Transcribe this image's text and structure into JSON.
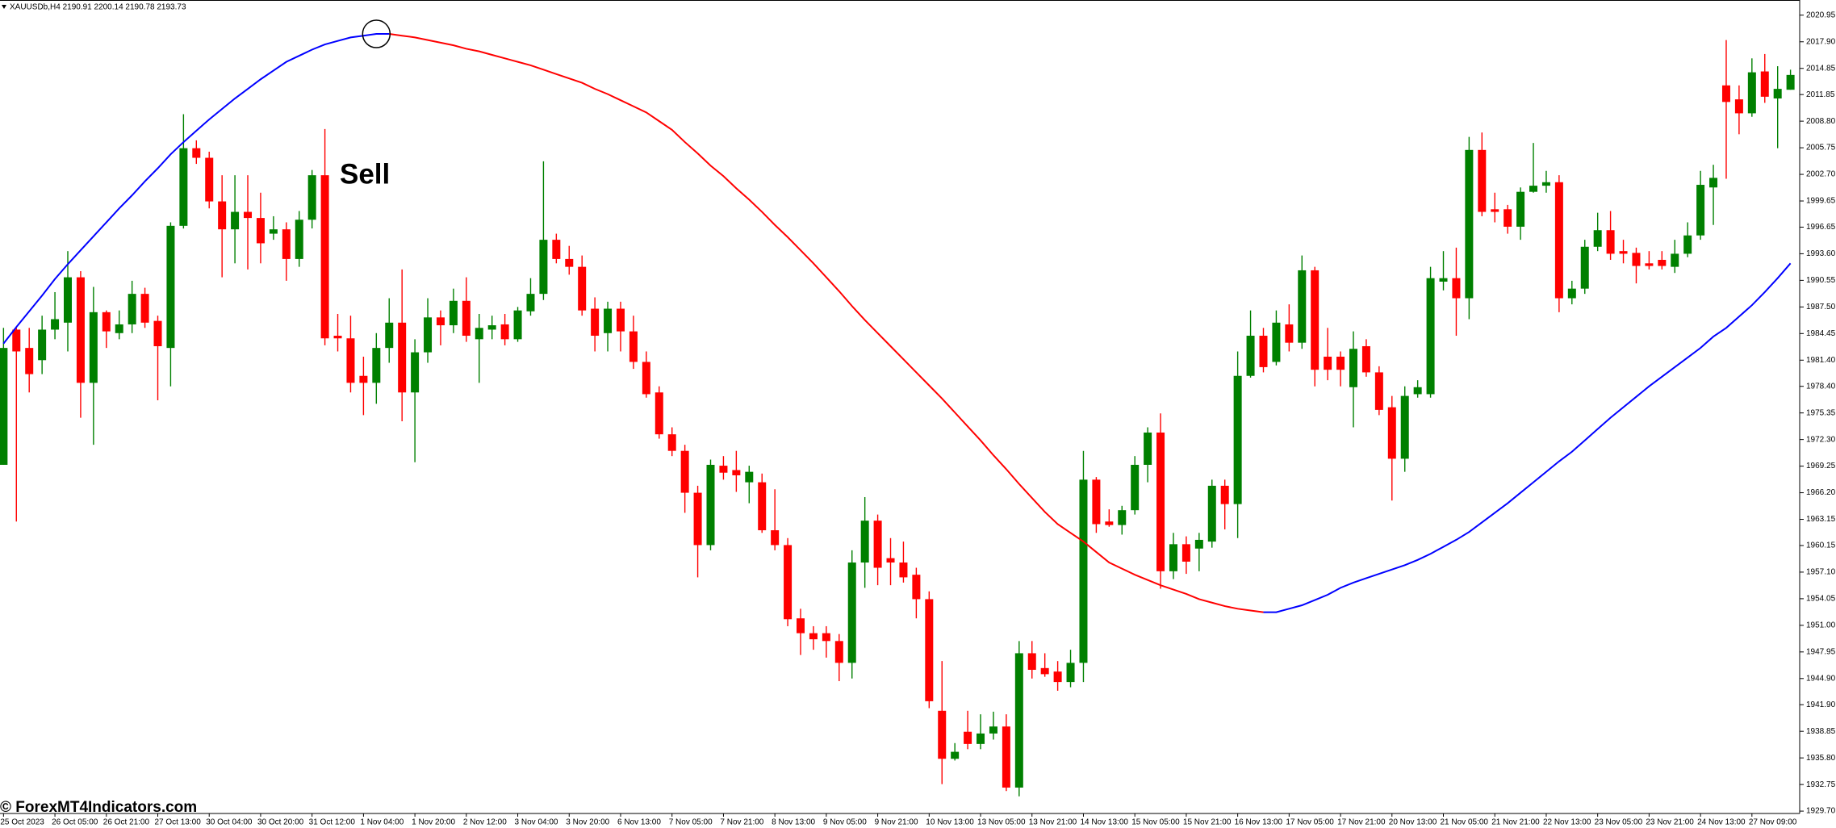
{
  "chart_data": {
    "type": "candlestick",
    "symbol_info": "XAUUSDb,H4 2190.91 2200.14 2190.78 2193.73",
    "annotation": "Sell",
    "watermark": "© ForexMT4Indicators.com",
    "categories": [
      "25 Oct 2023",
      null,
      null,
      null,
      "26 Oct 05:00",
      null,
      null,
      null,
      "26 Oct 21:00",
      null,
      null,
      null,
      "27 Oct 13:00",
      null,
      null,
      null,
      "30 Oct 04:00",
      null,
      null,
      null,
      "30 Oct 20:00",
      null,
      null,
      null,
      "31 Oct 12:00",
      null,
      null,
      null,
      "1 Nov 04:00",
      null,
      null,
      null,
      "1 Nov 20:00",
      null,
      null,
      null,
      "2 Nov 12:00",
      null,
      null,
      null,
      "3 Nov 04:00",
      null,
      null,
      null,
      "3 Nov 20:00",
      null,
      null,
      null,
      "6 Nov 13:00",
      null,
      null,
      null,
      "7 Nov 05:00",
      null,
      null,
      null,
      "7 Nov 21:00",
      null,
      null,
      null,
      "8 Nov 13:00",
      null,
      null,
      null,
      "9 Nov 05:00",
      null,
      null,
      null,
      "9 Nov 21:00",
      null,
      null,
      null,
      "10 Nov 13:00",
      null,
      null,
      null,
      "13 Nov 05:00",
      null,
      null,
      null,
      "13 Nov 21:00",
      null,
      null,
      null,
      "14 Nov 13:00",
      null,
      null,
      null,
      "15 Nov 05:00",
      null,
      null,
      null,
      "15 Nov 21:00",
      null,
      null,
      null,
      "16 Nov 13:00",
      null,
      null,
      null,
      "17 Nov 05:00",
      null,
      null,
      null,
      "17 Nov 21:00",
      null,
      null,
      null,
      "20 Nov 13:00",
      null,
      null,
      null,
      "21 Nov 05:00",
      null,
      null,
      null,
      "21 Nov 21:00",
      null,
      null,
      null,
      "22 Nov 13:00",
      null,
      null,
      null,
      "23 Nov 05:00",
      null,
      null,
      null,
      "23 Nov 21:00",
      null,
      null,
      null,
      "24 Nov 13:00",
      null,
      null,
      null,
      "27 Nov 09:00",
      null,
      null,
      null
    ],
    "open": [
      1969.4,
      1984.9,
      1982.8,
      1981.4,
      1984.9,
      1985.7,
      1990.9,
      1978.8,
      1986.9,
      1984.5,
      1985.5,
      1989.0,
      1985.9,
      1982.8,
      1996.8,
      2005.7,
      2004.6,
      1999.6,
      1996.4,
      1998.4,
      1997.7,
      1995.9,
      1996.4,
      1993.0,
      1997.5,
      2002.6,
      1984.2,
      1983.9,
      1979.6,
      1978.8,
      1982.8,
      1985.7,
      1977.7,
      1982.3,
      1986.3,
      1985.4,
      1988.2,
      1983.8,
      1984.9,
      1985.5,
      1983.8,
      1987.0,
      1989.0,
      1995.2,
      1993.0,
      1992.1,
      1987.3,
      1984.5,
      1987.3,
      1984.7,
      1981.2,
      1977.7,
      1972.9,
      1971.0,
      1966.2,
      1960.2,
      1969.3,
      1968.8,
      1967.4,
      1967.4,
      1961.9,
      1960.2,
      1951.8,
      1950.1,
      1950.1,
      1949.2,
      1946.7,
      1958.2,
      1963.0,
      1958.7,
      1958.2,
      1956.8,
      1954.0,
      1941.2,
      1935.7,
      1938.8,
      1937.4,
      1938.6,
      1939.4,
      1932.4,
      1947.8,
      1946.1,
      1945.7,
      1944.5,
      1946.7,
      1967.7,
      1962.9,
      1962.5,
      1964.2,
      1969.4,
      1973.1,
      1957.2,
      1960.3,
      1959.8,
      1960.6,
      1967.0,
      1964.9,
      1979.6,
      1984.2,
      1981.2,
      1985.5,
      1983.4,
      1991.7,
      1981.8,
      1981.8,
      1978.3,
      1983.0,
      1980.0,
      1976.0,
      1970.1,
      1977.5,
      1977.5,
      1990.4,
      1990.8,
      1988.5,
      2005.5,
      1998.7,
      1998.7,
      1996.7,
      2000.7,
      2001.4,
      2001.8,
      1988.5,
      1989.6,
      1994.4,
      1996.3,
      1993.9,
      1993.7,
      1992.5,
      1992.9,
      1992.1,
      1993.6,
      1995.7,
      2001.2,
      2012.9,
      2011.3,
      2009.7,
      2014.5,
      2011.4,
      2012.4
    ],
    "high": [
      1985.1,
      1985.1,
      1985.1,
      1986.5,
      1989.2,
      1993.9,
      1991.6,
      1989.8,
      1987.1,
      1987.1,
      1990.5,
      1989.7,
      1986.5,
      1997.2,
      2009.6,
      2006.6,
      2005.3,
      2002.6,
      2002.6,
      2002.6,
      2000.6,
      1997.9,
      1997.2,
      1998.5,
      2003.2,
      2007.9,
      1986.7,
      1986.5,
      1981.8,
      1984.5,
      1988.5,
      1991.8,
      1983.8,
      1988.5,
      1987.1,
      1989.6,
      1990.9,
      1986.7,
      1986.5,
      1986.7,
      1987.5,
      1990.8,
      2004.2,
      1995.9,
      1994.5,
      1993.4,
      1988.6,
      1988.1,
      1988.1,
      1986.5,
      1982.4,
      1978.4,
      1973.7,
      1971.7,
      1967.0,
      1970.0,
      1970.4,
      1971.0,
      1969.3,
      1968.4,
      1966.6,
      1961.0,
      1952.9,
      1950.9,
      1950.9,
      1950.0,
      1959.6,
      1965.7,
      1963.7,
      1961.0,
      1960.6,
      1957.6,
      1954.9,
      1946.9,
      1937.5,
      1941.2,
      1940.8,
      1941.1,
      1940.8,
      1949.2,
      1949.2,
      1947.8,
      1946.9,
      1948.2,
      1971.0,
      1968.0,
      1964.3,
      1964.7,
      1970.4,
      1973.7,
      1975.3,
      1961.6,
      1961.2,
      1961.6,
      1967.7,
      1967.7,
      1982.4,
      1987.1,
      1985.1,
      1987.1,
      1987.8,
      1993.4,
      1992.1,
      1985.1,
      1982.4,
      1984.7,
      1983.8,
      1980.7,
      1977.3,
      1978.4,
      1979.1,
      1992.1,
      1993.9,
      1994.3,
      2007.0,
      2007.5,
      2000.6,
      1999.2,
      2001.2,
      2006.3,
      2003.1,
      2002.6,
      1990.5,
      1995.2,
      1998.3,
      1998.5,
      1995.2,
      1994.3,
      1993.9,
      1993.9,
      1995.2,
      1997.2,
      2003.1,
      2003.8,
      2018.1,
      2012.9,
      2016.0,
      2016.5,
      2015.1,
      2014.7
    ],
    "low": [
      1969.4,
      1962.9,
      1977.7,
      1979.8,
      1983.8,
      1982.4,
      1974.8,
      1971.7,
      1982.8,
      1983.8,
      1984.5,
      1985.1,
      1976.8,
      1978.4,
      1996.5,
      2003.9,
      1998.8,
      1990.9,
      1992.5,
      1991.8,
      1992.5,
      1995.2,
      1990.5,
      1992.1,
      1996.5,
      1983.1,
      1982.4,
      1977.7,
      1975.1,
      1976.4,
      1981.1,
      1974.4,
      1969.7,
      1981.1,
      1983.1,
      1984.5,
      1983.5,
      1978.8,
      1983.8,
      1983.1,
      1983.5,
      1986.5,
      1988.3,
      1992.5,
      1991.2,
      1986.5,
      1982.4,
      1982.4,
      1982.4,
      1980.4,
      1977.1,
      1972.4,
      1970.4,
      1963.9,
      1956.5,
      1959.6,
      1967.7,
      1966.3,
      1965.0,
      1961.6,
      1959.6,
      1950.9,
      1947.6,
      1948.2,
      1947.3,
      1944.6,
      1944.9,
      1955.3,
      1955.6,
      1955.6,
      1955.9,
      1951.8,
      1941.5,
      1932.8,
      1935.5,
      1936.8,
      1936.8,
      1937.9,
      1932.0,
      1931.4,
      1944.9,
      1945.1,
      1943.5,
      1943.9,
      1944.5,
      1961.6,
      1962.3,
      1961.4,
      1963.7,
      1967.4,
      1955.2,
      1956.3,
      1956.9,
      1957.2,
      1959.9,
      1962.0,
      1961.0,
      1979.4,
      1980.0,
      1980.8,
      1982.4,
      1982.7,
      1978.4,
      1979.1,
      1978.4,
      1973.7,
      1979.5,
      1975.1,
      1965.3,
      1968.6,
      1977.1,
      1977.1,
      1989.4,
      1984.2,
      1986.1,
      1997.9,
      1997.2,
      1995.9,
      1995.2,
      2000.6,
      2000.6,
      1986.9,
      1987.8,
      1989.0,
      1993.9,
      1992.9,
      1992.5,
      1990.2,
      1991.8,
      1991.8,
      1991.4,
      1993.2,
      1995.2,
      1996.9,
      2002.2,
      2007.3,
      2009.3,
      2010.9,
      2005.7,
      2012.4
    ],
    "close": [
      1982.8,
      1982.4,
      1979.8,
      1984.9,
      1986.1,
      1990.9,
      1978.8,
      1986.9,
      1984.7,
      1985.5,
      1989.0,
      1985.7,
      1983.0,
      1996.8,
      2005.7,
      2004.6,
      1999.6,
      1996.4,
      1998.4,
      1997.7,
      1994.8,
      1996.4,
      1993.0,
      1997.5,
      2002.6,
      1983.9,
      1983.9,
      1978.8,
      1978.8,
      1982.8,
      1985.7,
      1977.7,
      1982.3,
      1986.3,
      1985.4,
      1988.2,
      1984.2,
      1985.1,
      1985.4,
      1983.8,
      1987.1,
      1989.0,
      1995.2,
      1993.0,
      1992.1,
      1987.1,
      1984.2,
      1987.3,
      1984.7,
      1981.2,
      1977.5,
      1972.9,
      1971.0,
      1966.2,
      1960.2,
      1969.4,
      1968.5,
      1968.2,
      1968.6,
      1961.9,
      1960.2,
      1951.7,
      1950.1,
      1949.4,
      1949.2,
      1946.7,
      1958.2,
      1963.0,
      1957.6,
      1958.2,
      1956.5,
      1954.0,
      1942.3,
      1935.7,
      1936.5,
      1937.4,
      1938.6,
      1939.4,
      1932.4,
      1947.8,
      1945.9,
      1945.4,
      1944.5,
      1946.7,
      1967.7,
      1962.6,
      1962.5,
      1964.2,
      1969.4,
      1973.1,
      1957.2,
      1960.3,
      1958.3,
      1960.8,
      1967.0,
      1964.9,
      1979.6,
      1984.2,
      1980.6,
      1985.7,
      1983.4,
      1991.7,
      1980.3,
      1980.3,
      1980.3,
      1982.7,
      1980.0,
      1975.7,
      1970.1,
      1977.3,
      1978.3,
      1990.8,
      1990.8,
      1988.5,
      2005.5,
      1998.4,
      1998.4,
      1996.7,
      2000.7,
      2001.4,
      2001.8,
      1988.5,
      1989.6,
      1994.4,
      1996.3,
      1993.6,
      1993.6,
      1992.2,
      1992.2,
      1992.2,
      1993.6,
      1995.7,
      2001.5,
      2002.3,
      2011.0,
      2009.7,
      2014.4,
      2011.6,
      2012.5,
      2014.1
    ],
    "up_color": "#008000",
    "down_color": "#ff0000",
    "ma": {
      "values": [
        1983.3,
        1985.2,
        1987.0,
        1988.8,
        1990.7,
        1992.4,
        1994.0,
        1995.6,
        1997.2,
        1998.8,
        2000.3,
        2001.9,
        2003.4,
        2005.0,
        2006.4,
        2007.7,
        2009.0,
        2010.2,
        2011.4,
        2012.5,
        2013.6,
        2014.6,
        2015.6,
        2016.3,
        2017.0,
        2017.6,
        2018.0,
        2018.4,
        2018.6,
        2018.8,
        2018.8,
        2018.6,
        2018.4,
        2018.1,
        2017.8,
        2017.5,
        2017.1,
        2016.8,
        2016.4,
        2016.0,
        2015.6,
        2015.2,
        2014.7,
        2014.2,
        2013.7,
        2013.2,
        2012.5,
        2011.9,
        2011.2,
        2010.5,
        2009.8,
        2008.8,
        2007.8,
        2006.4,
        2005.1,
        2003.7,
        2002.5,
        2001.1,
        1999.8,
        1998.4,
        1996.9,
        1995.5,
        1994.0,
        1992.5,
        1990.9,
        1989.3,
        1987.6,
        1986.0,
        1984.5,
        1983.0,
        1981.5,
        1980.0,
        1978.5,
        1977.0,
        1975.4,
        1973.8,
        1972.2,
        1970.5,
        1968.9,
        1967.2,
        1965.6,
        1964.0,
        1962.6,
        1961.6,
        1960.6,
        1959.4,
        1958.2,
        1957.5,
        1956.8,
        1956.2,
        1955.6,
        1955.1,
        1954.6,
        1954.0,
        1953.6,
        1953.2,
        1952.9,
        1952.7,
        1952.5,
        1952.5,
        1952.9,
        1953.3,
        1953.9,
        1954.5,
        1955.3,
        1955.9,
        1956.4,
        1956.9,
        1957.4,
        1957.9,
        1958.5,
        1959.2,
        1960.0,
        1960.8,
        1961.7,
        1962.8,
        1963.9,
        1965.0,
        1966.2,
        1967.4,
        1968.6,
        1969.8,
        1970.9,
        1972.2,
        1973.5,
        1974.8,
        1976.0,
        1977.2,
        1978.4,
        1979.5,
        1980.6,
        1981.7,
        1982.8,
        1984.1,
        1985.1,
        1986.4,
        1987.7,
        1989.2,
        1990.8,
        1992.5
      ],
      "up_color": "#0000ff",
      "down_color": "#ff0000"
    },
    "ylim": [
      1929.43,
      2022.69
    ],
    "yticks": [
      2020.95,
      {
        "value": 2017.9,
        "label": "2017.90"
      },
      2014.85,
      2011.85,
      {
        "value": 2008.8,
        "label": "2008.80"
      },
      2005.75,
      {
        "value": 2002.7,
        "label": "2002.70"
      },
      1999.65,
      1996.65,
      {
        "value": 1993.6,
        "label": "1993.60"
      },
      1990.55,
      {
        "value": 1987.5,
        "label": "1987.50"
      },
      1984.45,
      {
        "value": 1981.4,
        "label": "1981.40"
      },
      {
        "value": 1978.4,
        "label": "1978.40"
      },
      1975.35,
      {
        "value": 1972.3,
        "label": "1972.30"
      },
      1969.25,
      {
        "value": 1966.2,
        "label": "1966.20"
      },
      1963.15,
      1960.15,
      {
        "value": 1957.1,
        "label": "1957.10"
      },
      1954.05,
      {
        "value": 1951,
        "label": "1951.00"
      },
      1947.95,
      {
        "value": 1944.9,
        "label": "1944.90"
      },
      {
        "value": 1941.9,
        "label": "1941.90"
      },
      1938.85,
      {
        "value": 1935.8,
        "label": "1935.80"
      },
      1932.75,
      {
        "value": 1929.7,
        "label": "1929.70"
      }
    ],
    "grid": false
  }
}
